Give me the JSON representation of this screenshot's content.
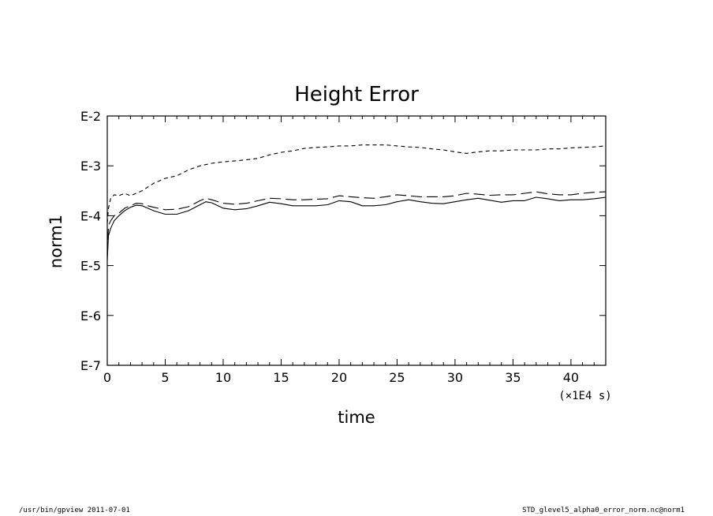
{
  "chart_data": {
    "type": "line",
    "title": "Height Error",
    "xlabel": "time",
    "ylabel": "norm1",
    "x_unit": "(×1E4 s)",
    "xlim": [
      0,
      43
    ],
    "ylim": [
      -7,
      -2
    ],
    "y_scale": "log",
    "x_ticks": [
      0,
      5,
      10,
      15,
      20,
      25,
      30,
      35,
      40
    ],
    "y_ticks": [
      -7,
      -6,
      -5,
      -4,
      -3,
      -2
    ],
    "y_tick_labels": [
      "E-7",
      "E-6",
      "E-5",
      "E-4",
      "E-3",
      "E-2"
    ],
    "grid": false,
    "series": [
      {
        "style": "dashed",
        "x": [
          0,
          0.1,
          0.3,
          0.6,
          1,
          1.5,
          2,
          3,
          4,
          5,
          6,
          7,
          8,
          9,
          10,
          11,
          12,
          13,
          14,
          15,
          16,
          17,
          18,
          19,
          20,
          21,
          22,
          23,
          24,
          25,
          26,
          27,
          28,
          29,
          30,
          31,
          32,
          33,
          34,
          35,
          36,
          37,
          38,
          39,
          40,
          41,
          42,
          43
        ],
        "y": [
          -4.15,
          -3.85,
          -3.65,
          -3.58,
          -3.6,
          -3.55,
          -3.6,
          -3.5,
          -3.35,
          -3.25,
          -3.2,
          -3.08,
          -3.0,
          -2.95,
          -2.92,
          -2.9,
          -2.88,
          -2.85,
          -2.78,
          -2.73,
          -2.7,
          -2.65,
          -2.63,
          -2.62,
          -2.6,
          -2.6,
          -2.58,
          -2.58,
          -2.58,
          -2.6,
          -2.62,
          -2.63,
          -2.66,
          -2.68,
          -2.72,
          -2.75,
          -2.72,
          -2.7,
          -2.7,
          -2.68,
          -2.68,
          -2.68,
          -2.66,
          -2.66,
          -2.64,
          -2.63,
          -2.62,
          -2.6
        ]
      },
      {
        "style": "long-dash",
        "x": [
          0,
          0.1,
          0.3,
          0.6,
          1,
          1.5,
          2,
          2.5,
          3,
          3.5,
          4,
          5,
          6,
          7,
          8,
          8.5,
          9,
          10,
          11,
          12,
          13,
          14,
          15,
          16,
          17,
          18,
          19,
          20,
          21,
          22,
          23,
          24,
          25,
          26,
          27,
          28,
          29,
          30,
          31,
          32,
          33,
          34,
          35,
          36,
          37,
          38,
          39,
          40,
          41,
          42,
          43
        ],
        "y": [
          -4.8,
          -4.2,
          -4.1,
          -4.0,
          -3.95,
          -3.85,
          -3.8,
          -3.75,
          -3.76,
          -3.8,
          -3.83,
          -3.88,
          -3.87,
          -3.82,
          -3.7,
          -3.65,
          -3.68,
          -3.75,
          -3.77,
          -3.75,
          -3.7,
          -3.65,
          -3.66,
          -3.68,
          -3.68,
          -3.67,
          -3.66,
          -3.6,
          -3.62,
          -3.64,
          -3.65,
          -3.62,
          -3.58,
          -3.6,
          -3.62,
          -3.62,
          -3.62,
          -3.6,
          -3.55,
          -3.57,
          -3.59,
          -3.58,
          -3.58,
          -3.55,
          -3.52,
          -3.56,
          -3.58,
          -3.58,
          -3.55,
          -3.53,
          -3.52
        ]
      },
      {
        "style": "solid",
        "x": [
          0,
          0.1,
          0.3,
          0.6,
          1,
          1.5,
          2,
          2.5,
          3,
          3.5,
          4,
          5,
          6,
          7,
          8,
          8.5,
          9,
          10,
          11,
          12,
          13,
          14,
          15,
          16,
          17,
          18,
          19,
          20,
          21,
          22,
          23,
          24,
          25,
          26,
          27,
          28,
          29,
          30,
          31,
          32,
          33,
          34,
          35,
          36,
          37,
          38,
          39,
          40,
          41,
          42,
          43
        ],
        "y": [
          -4.9,
          -4.4,
          -4.25,
          -4.1,
          -4.0,
          -3.9,
          -3.83,
          -3.79,
          -3.8,
          -3.85,
          -3.9,
          -3.97,
          -3.97,
          -3.9,
          -3.78,
          -3.72,
          -3.74,
          -3.85,
          -3.88,
          -3.86,
          -3.8,
          -3.73,
          -3.76,
          -3.8,
          -3.8,
          -3.8,
          -3.78,
          -3.7,
          -3.72,
          -3.8,
          -3.8,
          -3.78,
          -3.72,
          -3.68,
          -3.72,
          -3.75,
          -3.76,
          -3.72,
          -3.68,
          -3.65,
          -3.69,
          -3.73,
          -3.7,
          -3.7,
          -3.63,
          -3.66,
          -3.7,
          -3.68,
          -3.68,
          -3.66,
          -3.63
        ]
      }
    ]
  },
  "footer": {
    "left": "/usr/bin/gpview   2011-07-01",
    "right": "STD_glevel5_alpha0_error_norm.nc@norm1"
  }
}
